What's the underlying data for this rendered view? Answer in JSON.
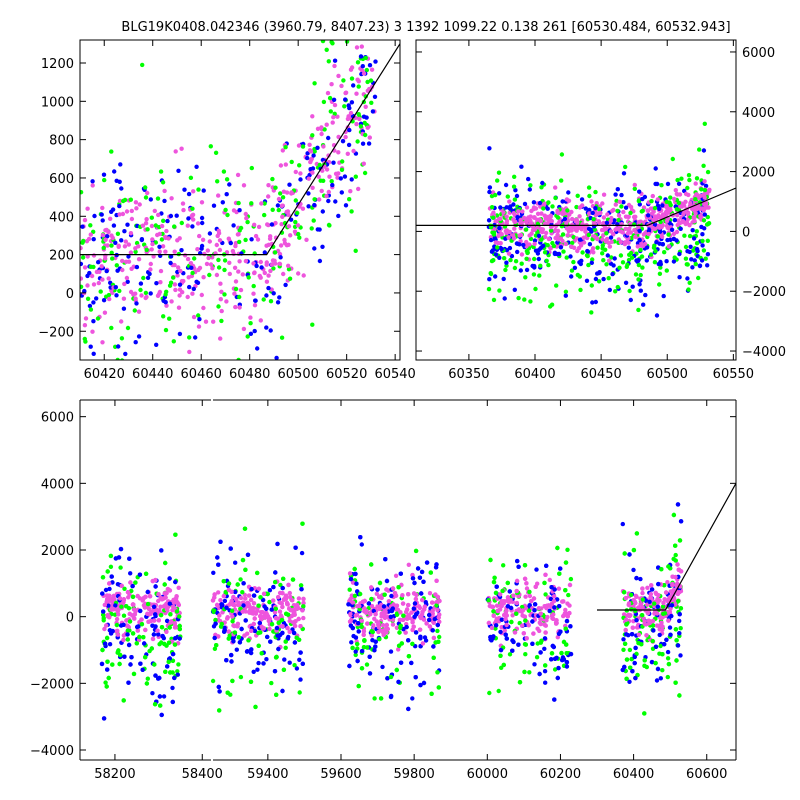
{
  "title": "BLG19K0408.042346 (3960.79, 8407.23)    3 1392 1099.22 0.138 261 [60530.484, 60532.943]",
  "chart_data": [
    {
      "panel": "top-left",
      "type": "scatter",
      "xlim": [
        60410,
        60542
      ],
      "ylim": [
        -350,
        1320
      ],
      "xticks": [
        60420,
        60440,
        60460,
        60480,
        60500,
        60520,
        60540
      ],
      "yticks": [
        -200,
        0,
        200,
        400,
        600,
        800,
        1000,
        1200
      ],
      "ytick_side": "left",
      "model": [
        [
          60410,
          200
        ],
        [
          60487,
          200
        ],
        [
          60543,
          1320
        ]
      ],
      "season_x": [
        [
          60410,
          60532
        ]
      ],
      "point_count": 900,
      "series_colors": [
        "#00ff00",
        "#0000ff",
        "#ee55dd"
      ]
    },
    {
      "panel": "top-right",
      "type": "scatter",
      "xlim": [
        60310,
        60552
      ],
      "ylim": [
        -4300,
        6400
      ],
      "xticks": [
        60350,
        60400,
        60450,
        60500,
        60550
      ],
      "yticks": [
        -4000,
        -2000,
        0,
        2000,
        4000,
        6000
      ],
      "ytick_side": "right",
      "model": [
        [
          60310,
          200
        ],
        [
          60485,
          200
        ],
        [
          60552,
          1450
        ]
      ],
      "season_x": [
        [
          60365,
          60532
        ]
      ],
      "point_count": 1200,
      "series_colors": [
        "#00ff00",
        "#0000ff",
        "#ee55dd"
      ]
    },
    {
      "panel": "bottom",
      "type": "scatter",
      "xlim": [
        58120,
        60680
      ],
      "ylim": [
        -4300,
        6500
      ],
      "xticks": [
        58200,
        58400,
        59400,
        59600,
        59800,
        60000,
        60200,
        60400,
        60600
      ],
      "yticks": [
        -4000,
        -2000,
        0,
        2000,
        4000,
        6000
      ],
      "ytick_side": "left",
      "model": [
        [
          60300,
          200
        ],
        [
          60487,
          200
        ],
        [
          60680,
          4000
        ]
      ],
      "season_x": [
        [
          58170,
          58350
        ],
        [
          59250,
          59500
        ],
        [
          59620,
          59870
        ],
        [
          60000,
          60230
        ],
        [
          60370,
          60530
        ]
      ],
      "point_count": 3000,
      "series_colors": [
        "#00ff00",
        "#0000ff",
        "#ee55dd"
      ]
    }
  ]
}
